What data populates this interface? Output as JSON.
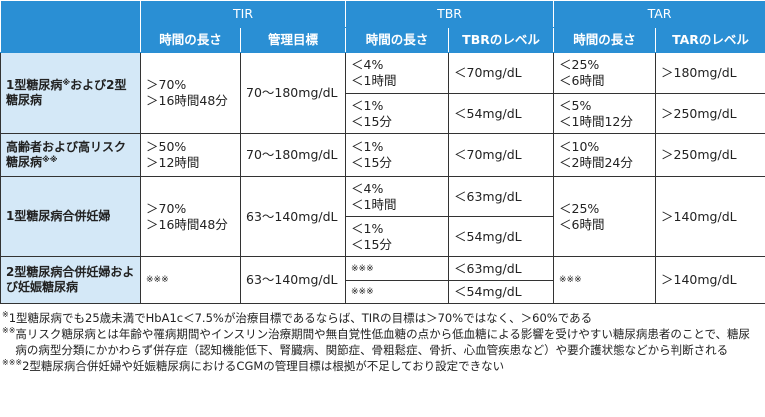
{
  "table": {
    "headers": [
      "TIR",
      "TBR",
      "TAR"
    ],
    "subheaders": [
      "時間の長さ",
      "管理目標",
      "時間の長さ",
      "TBRのレベル",
      "時間の長さ",
      "TARのレベル"
    ],
    "rows": [
      {
        "label": [
          "1型糖尿病",
          "※",
          "および2型糖尿病"
        ],
        "tir_time": [
          "＞70%",
          "＞16時間48分"
        ],
        "tir_target": "70～180mg/dL",
        "tbr": [
          {
            "time": [
              "＜4%",
              "＜1時間"
            ],
            "level": "＜70mg/dL"
          },
          {
            "time": [
              "＜1%",
              "＜15分"
            ],
            "level": "＜54mg/dL"
          }
        ],
        "tar": [
          {
            "time": [
              "＜25%",
              "＜6時間"
            ],
            "level": "＞180mg/dL"
          },
          {
            "time": [
              "＜5%",
              "＜1時間12分"
            ],
            "level": "＞250mg/dL"
          }
        ]
      },
      {
        "label": [
          "高齢者および高リスク糖尿病",
          "※※"
        ],
        "tir_time": [
          "＞50%",
          "＞12時間"
        ],
        "tir_target": "70～180mg/dL",
        "tbr": [
          {
            "time": [
              "＜1%",
              "＜15分"
            ],
            "level": "＜70mg/dL"
          }
        ],
        "tar": [
          {
            "time": [
              "＜10%",
              "＜2時間24分"
            ],
            "level": "＞250mg/dL"
          }
        ]
      },
      {
        "label": [
          "1型糖尿病合併妊婦"
        ],
        "tir_time": [
          "＞70%",
          "＞16時間48分"
        ],
        "tir_target": "63～140mg/dL",
        "tbr": [
          {
            "time": [
              "＜4%",
              "＜1時間"
            ],
            "level": "＜63mg/dL"
          },
          {
            "time": [
              "＜1%",
              "＜15分"
            ],
            "level": "＜54mg/dL"
          }
        ],
        "tar": [
          {
            "time": [
              "＜25%",
              "＜6時間"
            ],
            "level": "＞140mg/dL"
          }
        ]
      },
      {
        "label": [
          "2型糖尿病合併妊婦および妊娠糖尿病"
        ],
        "tir_time": [
          "※※※"
        ],
        "tir_target": "63～140mg/dL",
        "tbr": [
          {
            "time": [
              "※※※"
            ],
            "level": "＜63mg/dL"
          },
          {
            "time": [
              "※※※"
            ],
            "level": "＜54mg/dL"
          }
        ],
        "tar": [
          {
            "time": [
              "※※※"
            ],
            "level": "＞140mg/dL"
          }
        ]
      }
    ],
    "footnotes": [
      {
        "mark": "※",
        "text": "1型糖尿病でも25歳未満でHbA1c＜7.5%が治療目標であるならば、TIRの目標は＞70%ではなく、＞60%である"
      },
      {
        "mark": "※※",
        "text": "高リスク糖尿病とは年齢や罹病期間やインスリン治療期間や無自覚性低血糖の点から低血糖による影響を受けやすい糖尿病患者のことで、糖尿病の病型分類にかかわらず併存症（認知機能低下、腎臓病、関節症、骨粗鬆症、骨折、心血管疾患など）や要介護状態などから判断される"
      },
      {
        "mark": "※※※",
        "text": "2型糖尿病合併妊婦や妊娠糖尿病におけるCGMの管理目標は根拠が不足しており設定できない"
      }
    ]
  }
}
